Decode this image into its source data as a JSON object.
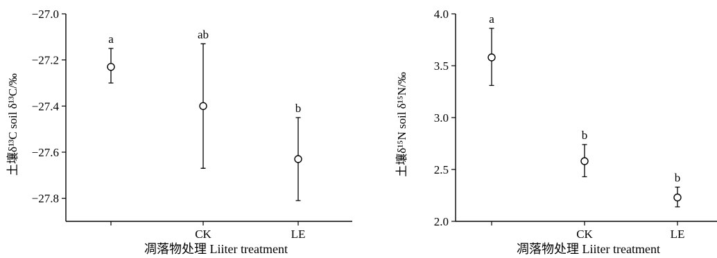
{
  "chart_data": [
    {
      "type": "scatter",
      "categories": [
        "",
        "CK",
        "LE"
      ],
      "values": [
        -27.23,
        -27.4,
        -27.63
      ],
      "errors": [
        [
          -27.3,
          -27.15
        ],
        [
          -27.67,
          -27.13
        ],
        [
          -27.81,
          -27.45
        ]
      ],
      "significance": [
        "a",
        "ab",
        "b"
      ],
      "xlabel": "凋落物处理 Liiter treatment",
      "ylabel": "土壤δ¹³C soil δ¹³C/‰",
      "ylim": [
        -27.9,
        -27.0
      ],
      "yticks": [
        -27.0,
        -27.2,
        -27.4,
        -27.6,
        -27.8
      ],
      "ytick_labels": [
        "−27.0",
        "−27.2",
        "−27.4",
        "−27.6",
        "−27.8"
      ],
      "grid": false
    },
    {
      "type": "scatter",
      "categories": [
        "",
        "CK",
        "LE"
      ],
      "values": [
        3.58,
        2.58,
        2.23
      ],
      "errors": [
        [
          3.31,
          3.86
        ],
        [
          2.43,
          2.74
        ],
        [
          2.14,
          2.33
        ]
      ],
      "significance": [
        "a",
        "b",
        "b"
      ],
      "xlabel": "凋落物处理 Liiter treatment",
      "ylabel": "土壤δ¹⁵N soil δ¹⁵N/‰",
      "ylim": [
        2.0,
        4.0
      ],
      "yticks": [
        2.0,
        2.5,
        3.0,
        3.5,
        4.0
      ],
      "ytick_labels": [
        "2.0",
        "2.5",
        "3.0",
        "3.5",
        "4.0"
      ],
      "grid": false
    }
  ]
}
